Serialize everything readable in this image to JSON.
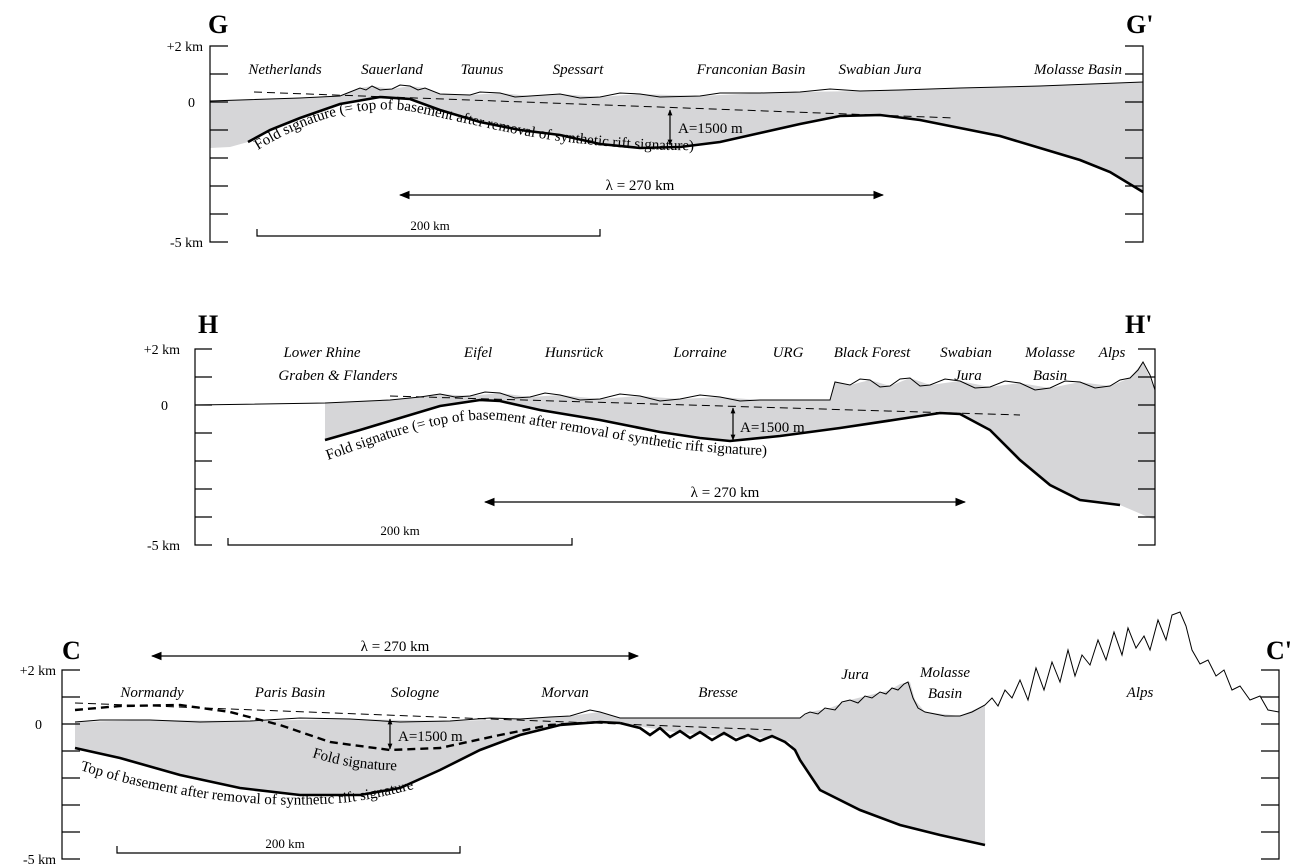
{
  "panels": [
    {
      "start_label": "G",
      "end_label": "G'",
      "axis_labels": [
        "+2 km",
        "0",
        "-5 km"
      ],
      "places": [
        "Netherlands",
        "Sauerland",
        "Taunus",
        "Spessart",
        "Franconian Basin",
        "Swabian Jura",
        "Molasse Basin"
      ],
      "fold_labels": [
        "Fold signature (= top of basement after removal of synthetic rift signature)"
      ],
      "amplitude": "A=1500 m",
      "wavelength": "λ = 270 km",
      "scale": "200 km"
    },
    {
      "start_label": "H",
      "end_label": "H'",
      "axis_labels": [
        "+2 km",
        "0",
        "-5 km"
      ],
      "places": [
        "Lower Rhine",
        "Graben & Flanders",
        "Eifel",
        "Hunsrück",
        "Lorraine",
        "URG",
        "Black Forest",
        "Swabian",
        "Jura",
        "Molasse",
        "Basin",
        "Alps"
      ],
      "fold_labels": [
        "Fold signature (= top of basement after removal of synthetic rift signature)"
      ],
      "amplitude": "A=1500 m",
      "wavelength": "λ = 270 km",
      "scale": "200 km"
    },
    {
      "start_label": "C",
      "end_label": "C'",
      "axis_labels": [
        "+2 km",
        "0",
        "-5 km"
      ],
      "places": [
        "Normandy",
        "Paris Basin",
        "Sologne",
        "Morvan",
        "Bresse",
        "Jura",
        "Molasse",
        "Basin",
        "Alps"
      ],
      "fold_labels": [
        "Fold signature",
        "Top of basement after removal of synthetic rift signature"
      ],
      "amplitude": "A=1500 m",
      "wavelength": "λ = 270 km",
      "scale": "200 km"
    }
  ]
}
